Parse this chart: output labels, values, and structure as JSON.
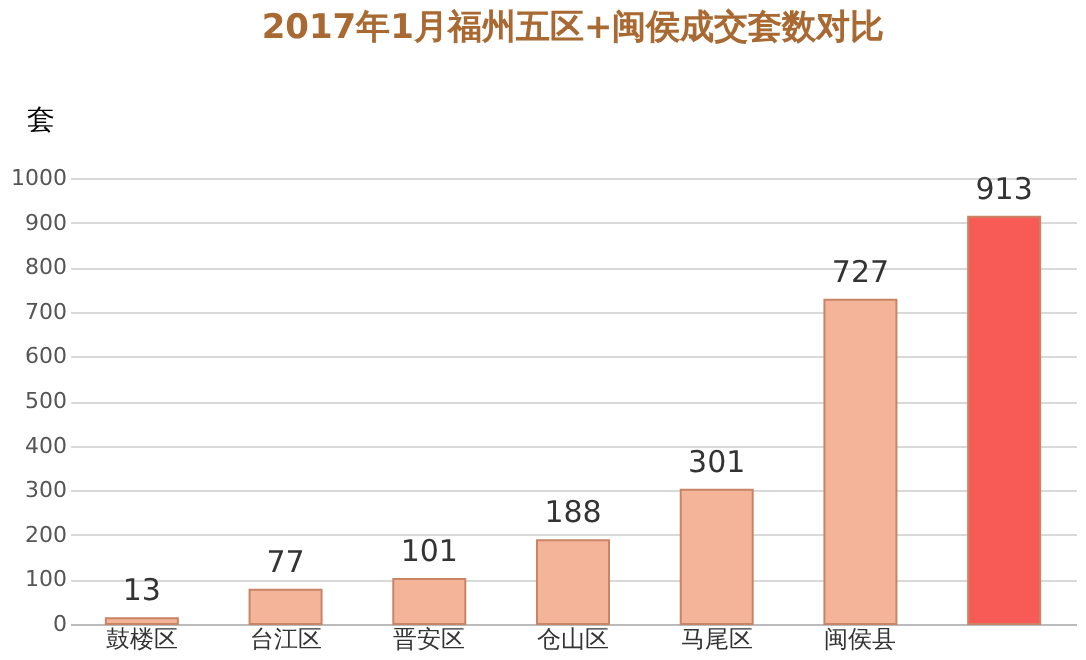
{
  "chart_data": {
    "type": "bar",
    "title": "2017年1月福州五区+闽侯成交套数对比",
    "ylabel": "套",
    "categories": [
      "鼓楼区",
      "台江区",
      "晋安区",
      "仓山区",
      "马尾区",
      "闽侯县",
      null
    ],
    "values": [
      13,
      77,
      101,
      188,
      301,
      727,
      913
    ],
    "colors": [
      "#f4b49a",
      "#f4b49a",
      "#f4b49a",
      "#f4b49a",
      "#f4b49a",
      "#f4b49a",
      "#f85a55"
    ],
    "ylim": [
      0,
      1000
    ],
    "yticks": [
      0,
      100,
      200,
      300,
      400,
      500,
      600,
      700,
      800,
      900,
      1000
    ],
    "grid": "y",
    "data_labels": true
  }
}
